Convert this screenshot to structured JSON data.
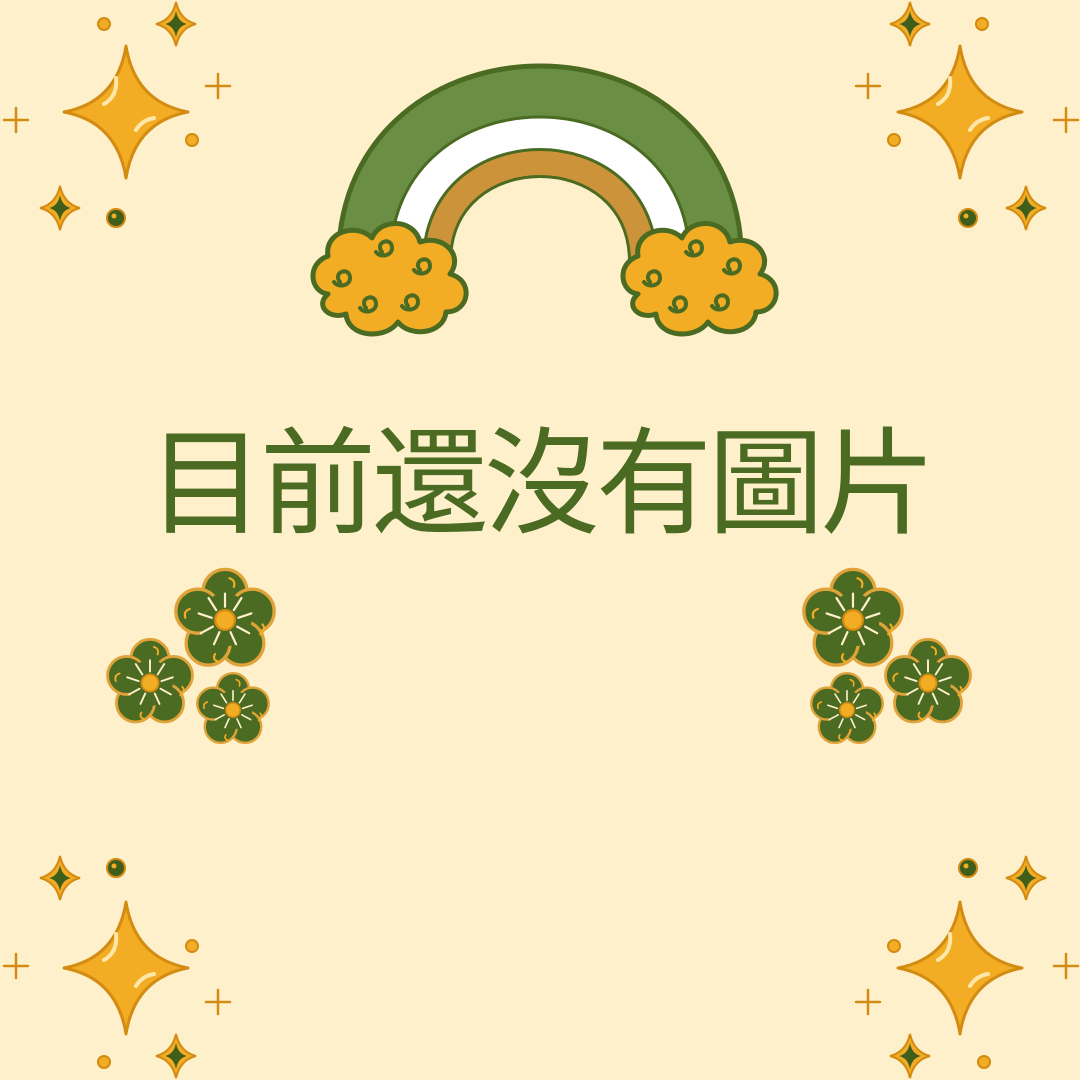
{
  "message": "目前還沒有圖片",
  "colors": {
    "background": "#FFF0CC",
    "green": "#4A6B21",
    "green_dark": "#3F5E1C",
    "arch_green": "#6B8E45",
    "arch_white": "#FFFFFF",
    "arch_orange": "#CD933A",
    "yellow": "#F2AD24",
    "sparkle_outline": "#D38B12",
    "flower_outline": "#E0A33A"
  },
  "icons": {
    "rainbow": "rainbow-icon",
    "sparkle": "sparkle-icon",
    "flower": "flower-icon"
  }
}
